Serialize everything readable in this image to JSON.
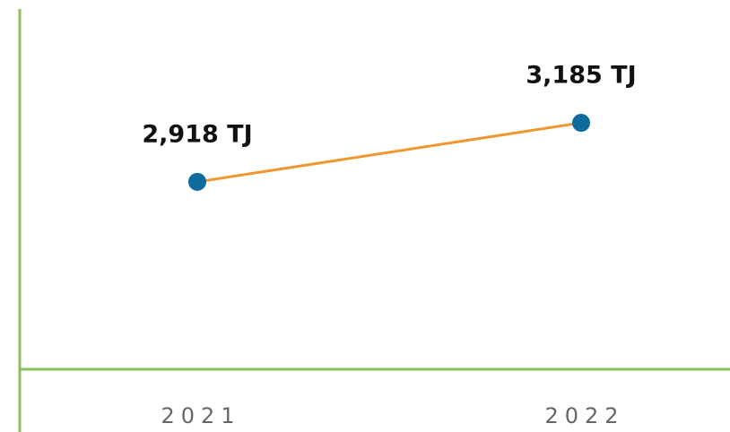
{
  "chart_data": {
    "type": "line",
    "categories": [
      "2021",
      "2022"
    ],
    "values": [
      2918,
      3185
    ],
    "value_labels": [
      "2,918 TJ",
      "3,185 TJ"
    ],
    "color": "#f0972f",
    "marker_color": "#0f6b9e",
    "ylim": [
      2070,
      3700
    ]
  }
}
